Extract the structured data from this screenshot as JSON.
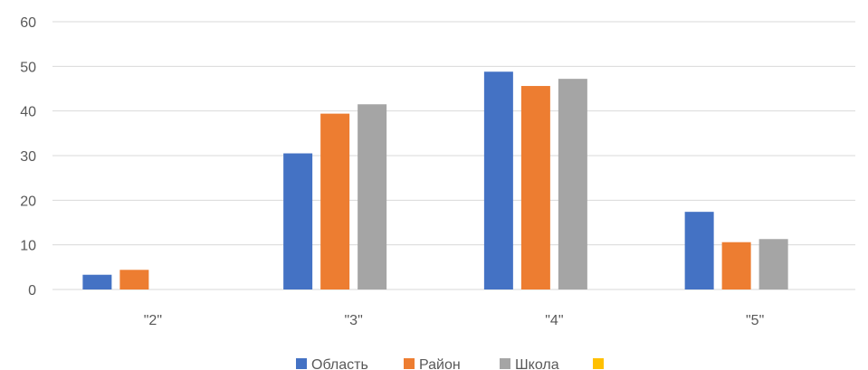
{
  "chart_data": {
    "type": "bar",
    "categories": [
      "\"2\"",
      "\"3\"",
      "\"4\"",
      "\"5\""
    ],
    "series": [
      {
        "name": "Область",
        "color": "#4472C4",
        "values": [
          3.3,
          30.5,
          48.8,
          17.4
        ]
      },
      {
        "name": "Район",
        "color": "#ED7D31",
        "values": [
          4.4,
          39.4,
          45.6,
          10.6
        ]
      },
      {
        "name": "Школа",
        "color": "#A5A5A5",
        "values": [
          0,
          41.5,
          47.2,
          11.3
        ]
      },
      {
        "name": "",
        "color": "#FFC000",
        "values": [
          0,
          0,
          0,
          0
        ]
      }
    ],
    "ylim": [
      0,
      60
    ],
    "yticks": [
      0,
      10,
      20,
      30,
      40,
      50,
      60
    ],
    "ytick_labels": [
      "0",
      "10",
      "20",
      "30",
      "40",
      "50",
      "60"
    ],
    "title": "",
    "xlabel": "",
    "ylabel": "",
    "grid": true,
    "legend_position": "bottom",
    "gridline_color": "#D9D9D9"
  }
}
